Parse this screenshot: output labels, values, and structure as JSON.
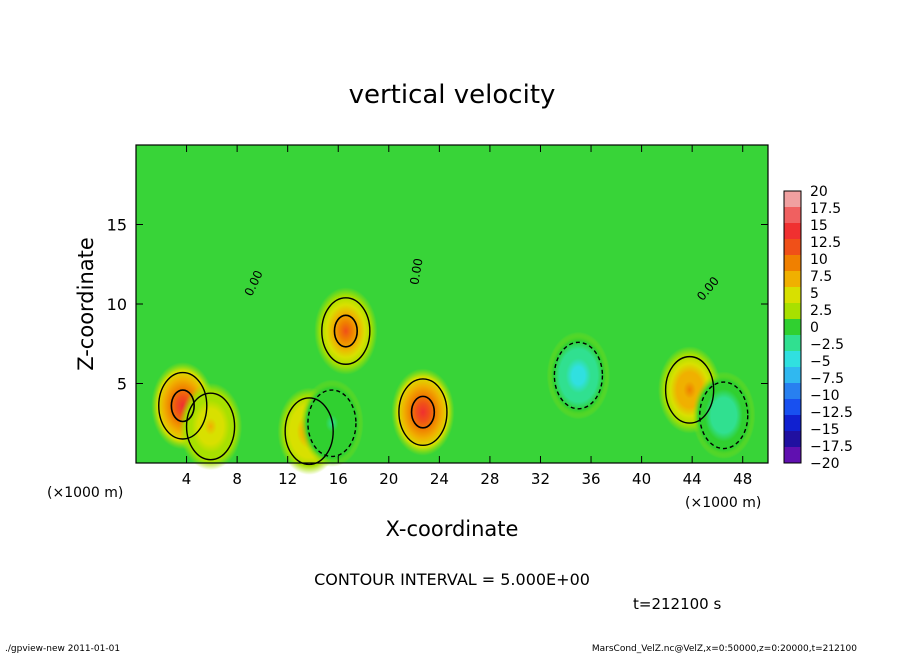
{
  "chart_data": {
    "type": "heatmap",
    "title": "vertical velocity",
    "xlabel": "X-coordinate",
    "ylabel": "Z-coordinate",
    "x_unit_left": "(×1000 m)",
    "x_unit_right": "(×1000 m)",
    "xlim": [
      0,
      50
    ],
    "ylim": [
      0,
      20
    ],
    "x_ticks": [
      4,
      8,
      12,
      16,
      20,
      24,
      28,
      32,
      36,
      40,
      44,
      48
    ],
    "y_ticks": [
      5,
      10,
      15
    ],
    "contour_interval_text": "CONTOUR INTERVAL = 5.000E+00",
    "time_text": "t=212100 s",
    "contour_labels": [
      {
        "text": "0.00",
        "x": 9.6,
        "z": 11.2,
        "angle": -65
      },
      {
        "text": "0.00",
        "x": 22.5,
        "z": 12.0,
        "angle": -80
      },
      {
        "text": "0.00",
        "x": 45.5,
        "z": 10.8,
        "angle": -50
      }
    ],
    "colorbar": {
      "levels": [
        20,
        17.5,
        15,
        12.5,
        10,
        7.5,
        5,
        2.5,
        0,
        -2.5,
        -5,
        -7.5,
        -10,
        -12.5,
        -15,
        -17.5,
        -20
      ],
      "level_labels": [
        "20",
        "17.5",
        "15",
        "12.5",
        "10",
        "7.5",
        "5",
        "2.5",
        "0",
        "−2.5",
        "−5",
        "−7.5",
        "−10",
        "−12.5",
        "−15",
        "−17.5",
        "−20"
      ],
      "colors": [
        "#f0a0a0",
        "#f06060",
        "#f03030",
        "#f05018",
        "#f08000",
        "#f0b000",
        "#d8e000",
        "#a8e000",
        "#30d030",
        "#30e090",
        "#30e0e0",
        "#30b8f0",
        "#2880f0",
        "#1850f0",
        "#1020d0",
        "#2010a0",
        "#6010b0"
      ]
    },
    "features": [
      {
        "kind": "updraft",
        "x": 3.7,
        "z": 3.6,
        "max": 13
      },
      {
        "kind": "updraft",
        "x": 22.7,
        "z": 3.2,
        "max": 13
      },
      {
        "kind": "updraft",
        "x": 16.6,
        "z": 8.3,
        "max": 11
      },
      {
        "kind": "updraft",
        "x": 43.8,
        "z": 4.6,
        "max": 9
      },
      {
        "kind": "updraft",
        "x": 13.7,
        "z": 2.0,
        "max": 7
      },
      {
        "kind": "updraft",
        "x": 5.9,
        "z": 2.3,
        "max": 6
      },
      {
        "kind": "downdraft",
        "x": 35,
        "z": 5.5,
        "min": -7
      },
      {
        "kind": "downdraft",
        "x": 46.5,
        "z": 3.0,
        "min": -5
      },
      {
        "kind": "downdraft",
        "x": 15.5,
        "z": 2.5,
        "min": -3
      }
    ]
  },
  "footer": {
    "left": "./gpview-new   2011-01-01",
    "right": "MarsCond_VelZ.nc@VelZ,x=0:50000,z=0:20000,t=212100"
  }
}
